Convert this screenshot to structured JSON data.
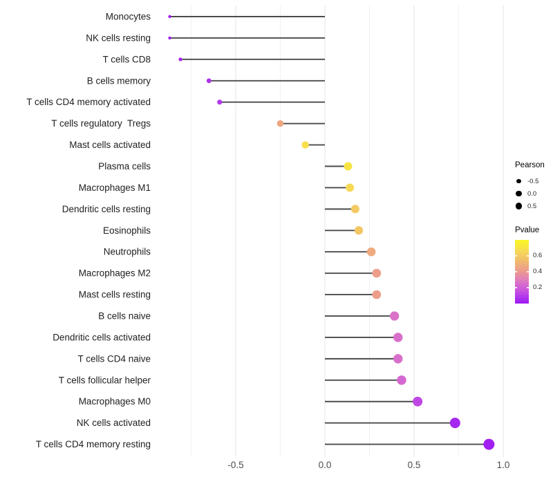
{
  "chart_data": {
    "type": "lollipop",
    "orientation": "horizontal",
    "title": "",
    "xlabel": "",
    "ylabel": "",
    "grid": "vertical-only",
    "legend_position": "right",
    "x_axis": {
      "tick_values": [
        -0.5,
        0.0,
        0.5,
        1.0
      ],
      "tick_labels": [
        "-0.5",
        "0.0",
        "0.5",
        "1.0"
      ],
      "minor_tick_values": [
        -0.75,
        -0.25,
        0.25,
        0.75
      ],
      "xlim": [
        -0.95,
        1.05
      ]
    },
    "points": [
      {
        "label": "Monocytes",
        "pearson": -0.87,
        "pvalue": 0.01
      },
      {
        "label": "NK cells resting",
        "pearson": -0.87,
        "pvalue": 0.02
      },
      {
        "label": "T cells CD8",
        "pearson": -0.81,
        "pvalue": 0.04
      },
      {
        "label": "B cells memory",
        "pearson": -0.65,
        "pvalue": 0.07
      },
      {
        "label": "T cells CD4 memory activated",
        "pearson": -0.59,
        "pvalue": 0.09
      },
      {
        "label": "T cells regulatory  Tregs",
        "pearson": -0.25,
        "pvalue": 0.46
      },
      {
        "label": "Mast cells activated",
        "pearson": -0.11,
        "pvalue": 0.68
      },
      {
        "label": "Plasma cells",
        "pearson": 0.13,
        "pvalue": 0.7
      },
      {
        "label": "Macrophages M1",
        "pearson": 0.14,
        "pvalue": 0.66
      },
      {
        "label": "Dendritic cells resting",
        "pearson": 0.17,
        "pvalue": 0.6
      },
      {
        "label": "Eosinophils",
        "pearson": 0.19,
        "pvalue": 0.58
      },
      {
        "label": "Neutrophils",
        "pearson": 0.26,
        "pvalue": 0.47
      },
      {
        "label": "Macrophages M2",
        "pearson": 0.29,
        "pvalue": 0.42
      },
      {
        "label": "Mast cells resting",
        "pearson": 0.29,
        "pvalue": 0.42
      },
      {
        "label": "B cells naive",
        "pearson": 0.39,
        "pvalue": 0.26
      },
      {
        "label": "Dendritic cells activated",
        "pearson": 0.41,
        "pvalue": 0.25
      },
      {
        "label": "T cells CD4 naive",
        "pearson": 0.41,
        "pvalue": 0.25
      },
      {
        "label": "T cells follicular helper",
        "pearson": 0.43,
        "pvalue": 0.23
      },
      {
        "label": "Macrophages M0",
        "pearson": 0.52,
        "pvalue": 0.13
      },
      {
        "label": "NK cells activated",
        "pearson": 0.73,
        "pvalue": 0.04
      },
      {
        "label": "T cells CD4 memory resting",
        "pearson": 0.92,
        "pvalue": 0.02
      }
    ],
    "size_legend": {
      "title": "Pearson",
      "labels": [
        "-0.5",
        "0.0",
        "0.5"
      ],
      "values": [
        -0.5,
        0.0,
        0.5
      ]
    },
    "color_legend": {
      "title": "Pvalue",
      "tick_labels": [
        "0.6",
        "0.4",
        "0.2"
      ],
      "tick_values": [
        0.6,
        0.4,
        0.2
      ],
      "domain": [
        0.0,
        0.8
      ]
    },
    "colors": {
      "stem": "#4a4a4a",
      "grid_major": "#e4e4e4",
      "grid_minor": "#f1f1f1",
      "axis_text": "#4d4d4d",
      "category_text": "#212121",
      "legend_dot": "#000000",
      "scale_stops": [
        {
          "t": 0.0,
          "color": "#9d17f2"
        },
        {
          "t": 0.1,
          "color": "#af36ee"
        },
        {
          "t": 0.2,
          "color": "#c853de"
        },
        {
          "t": 0.28,
          "color": "#d466d2"
        },
        {
          "t": 0.36,
          "color": "#de7bc0"
        },
        {
          "t": 0.44,
          "color": "#e78ca4"
        },
        {
          "t": 0.5,
          "color": "#eb998e"
        },
        {
          "t": 0.6,
          "color": "#efac7d"
        },
        {
          "t": 0.7,
          "color": "#f2c167"
        },
        {
          "t": 0.8,
          "color": "#f5d45c"
        },
        {
          "t": 0.9,
          "color": "#f8e83c"
        },
        {
          "t": 1.0,
          "color": "#f9f626"
        }
      ]
    }
  }
}
